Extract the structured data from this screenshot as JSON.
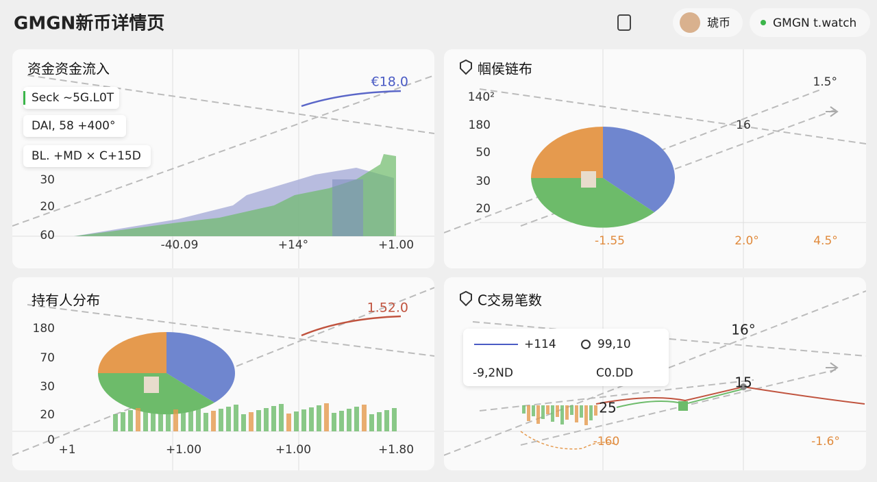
{
  "header": {
    "title": "GMGN新币详情页",
    "user_label": "琥币",
    "status": "GMGN t.watch"
  },
  "panels": [
    {
      "title": "资金资金流入",
      "value": "€18.0",
      "legend": [
        "Seck ~5G.L0T",
        "DAI, 58 +400°",
        "BL. +MD × C+15D"
      ],
      "y_labels": [
        "30",
        "20",
        "60"
      ],
      "x_labels": [
        "-40.09",
        "+14°",
        "+1.00"
      ]
    },
    {
      "title": "帼侯链布",
      "value": "1.5°",
      "mid_label": "16",
      "y_labels": [
        "140²",
        "180",
        "50",
        "30",
        "20"
      ],
      "x_labels": [
        "-1.55",
        "2.0°",
        "4.5°"
      ]
    },
    {
      "title": "持有人分布",
      "value": "1.52.0",
      "y_labels": [
        "180",
        "70",
        "30",
        "20",
        "0"
      ],
      "x_labels": [
        "+1",
        "+1.00",
        "+1.00",
        "+1.80"
      ]
    },
    {
      "title": "C交易笔数",
      "tooltip": [
        [
          "+114",
          "99,10"
        ],
        [
          "-9,2ND",
          "C0.DD"
        ]
      ],
      "labels": [
        "16°",
        "15",
        "25"
      ],
      "x_labels": [
        "-160",
        "-1.6°"
      ]
    }
  ]
}
